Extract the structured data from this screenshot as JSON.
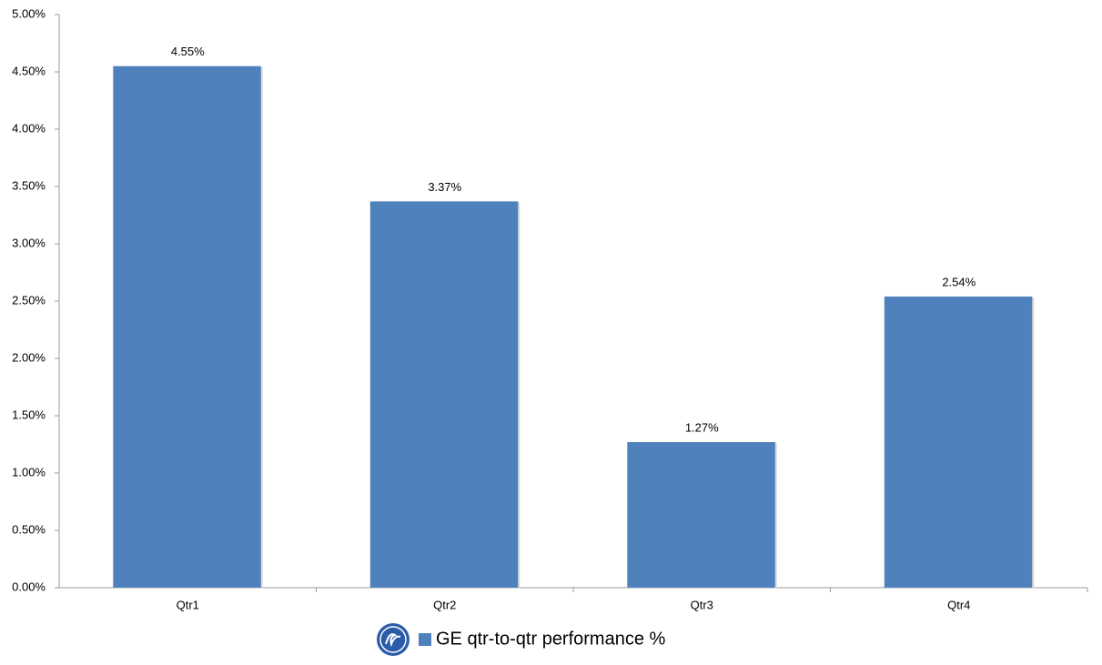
{
  "chart_data": {
    "type": "bar",
    "categories": [
      "Qtr1",
      "Qtr2",
      "Qtr3",
      "Qtr4"
    ],
    "series": [
      {
        "name": "GE qtr-to-qtr performance %",
        "color": "#4f81bd",
        "values": [
          4.55,
          3.37,
          1.27,
          2.54
        ],
        "value_labels": [
          "4.55%",
          "3.37%",
          "1.27%",
          "2.54%"
        ]
      }
    ],
    "ylim": [
      0,
      5
    ],
    "yticks": [
      {
        "value": 0,
        "label": "0.00%"
      },
      {
        "value": 0.5,
        "label": "0.50%"
      },
      {
        "value": 1,
        "label": "1.00%"
      },
      {
        "value": 1.5,
        "label": "1.50%"
      },
      {
        "value": 2,
        "label": "2.00%"
      },
      {
        "value": 2.5,
        "label": "2.50%"
      },
      {
        "value": 3,
        "label": "3.00%"
      },
      {
        "value": 3.5,
        "label": "3.50%"
      },
      {
        "value": 4,
        "label": "4.00%"
      },
      {
        "value": 4.5,
        "label": "4.50%"
      },
      {
        "value": 5,
        "label": "5.00%"
      }
    ],
    "grid": false
  }
}
